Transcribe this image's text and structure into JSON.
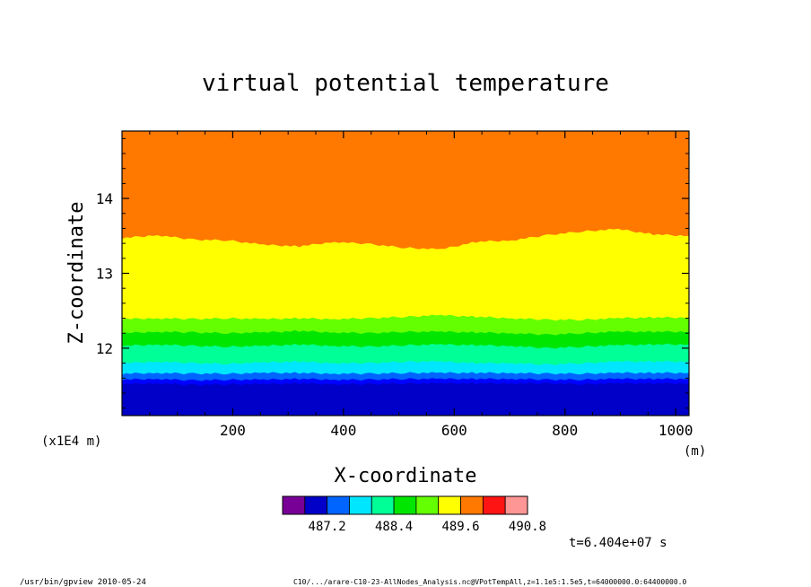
{
  "chart_data": {
    "type": "contour-fill",
    "title": "virtual potential temperature",
    "xlabel": "X-coordinate",
    "ylabel": "Z-coordinate",
    "x_unit": "(m)",
    "y_unit": "(x1E4 m)",
    "xlim": [
      0,
      1024
    ],
    "ylim": [
      11.1,
      14.9
    ],
    "x_ticks": [
      200,
      400,
      600,
      800,
      1000
    ],
    "x_tick_labels": [
      "200",
      "400",
      "600",
      "800",
      "1000"
    ],
    "y_ticks": [
      12,
      13,
      14
    ],
    "y_tick_labels": [
      "12",
      "13",
      "14"
    ],
    "x_samples": [
      0,
      64,
      128,
      192,
      256,
      320,
      384,
      448,
      512,
      576,
      640,
      704,
      768,
      832,
      896,
      960,
      1024
    ],
    "boundaries": [
      {
        "upper_color": "#0000ff",
        "z": [
          11.52,
          11.53,
          11.51,
          11.52,
          11.52,
          11.53,
          11.52,
          11.52,
          11.53,
          11.53,
          11.53,
          11.53,
          11.53,
          11.52,
          11.53,
          11.53,
          11.53
        ]
      },
      {
        "upper_color": "#0064ff",
        "z": [
          11.58,
          11.59,
          11.57,
          11.58,
          11.58,
          11.59,
          11.58,
          11.58,
          11.59,
          11.59,
          11.59,
          11.59,
          11.58,
          11.58,
          11.59,
          11.59,
          11.59
        ]
      },
      {
        "upper_color": "#00e6ff",
        "z": [
          11.66,
          11.67,
          11.66,
          11.66,
          11.67,
          11.67,
          11.66,
          11.66,
          11.67,
          11.67,
          11.67,
          11.67,
          11.66,
          11.66,
          11.67,
          11.67,
          11.67
        ]
      },
      {
        "upper_color": "#00ff96",
        "z": [
          11.8,
          11.82,
          11.8,
          11.79,
          11.81,
          11.82,
          11.8,
          11.8,
          11.82,
          11.82,
          11.8,
          11.8,
          11.78,
          11.8,
          11.82,
          11.82,
          11.82
        ]
      },
      {
        "upper_color": "#00e600",
        "z": [
          12.03,
          12.05,
          12.03,
          12.02,
          12.03,
          12.05,
          12.03,
          12.02,
          12.04,
          12.05,
          12.04,
          12.03,
          12.0,
          12.02,
          12.04,
          12.05,
          12.05
        ]
      },
      {
        "upper_color": "#64ff00",
        "z": [
          12.2,
          12.22,
          12.21,
          12.2,
          12.21,
          12.23,
          12.21,
          12.2,
          12.22,
          12.22,
          12.21,
          12.2,
          12.18,
          12.2,
          12.22,
          12.22,
          12.22
        ]
      },
      {
        "upper_color": "#ffff00",
        "z": [
          12.39,
          12.4,
          12.39,
          12.4,
          12.39,
          12.4,
          12.39,
          12.4,
          12.42,
          12.44,
          12.42,
          12.4,
          12.38,
          12.38,
          12.4,
          12.41,
          12.41
        ]
      },
      {
        "upper_color": "#ff7800",
        "z": [
          13.47,
          13.51,
          13.45,
          13.44,
          13.38,
          13.36,
          13.42,
          13.39,
          13.34,
          13.32,
          13.42,
          13.44,
          13.51,
          13.56,
          13.59,
          13.52,
          13.5
        ]
      }
    ],
    "lowest_color": "#0000c8",
    "colorbar": {
      "colors": [
        "#780096",
        "#0000c8",
        "#0064ff",
        "#00e6ff",
        "#00ff96",
        "#00e600",
        "#64ff00",
        "#ffff00",
        "#ff7800",
        "#ff1414",
        "#ff9696"
      ],
      "tick_labels": [
        "487.2",
        "488.4",
        "489.6",
        "490.8"
      ]
    }
  },
  "time_label": "t=6.404e+07 s",
  "footer": {
    "left": "/usr/bin/gpview   2010-05-24",
    "right": "C10/.../arare-C10-23-AllNodes_Analysis.nc@VPotTempAll,z=1.1e5:1.5e5,t=64000000.0:64400000.0"
  }
}
